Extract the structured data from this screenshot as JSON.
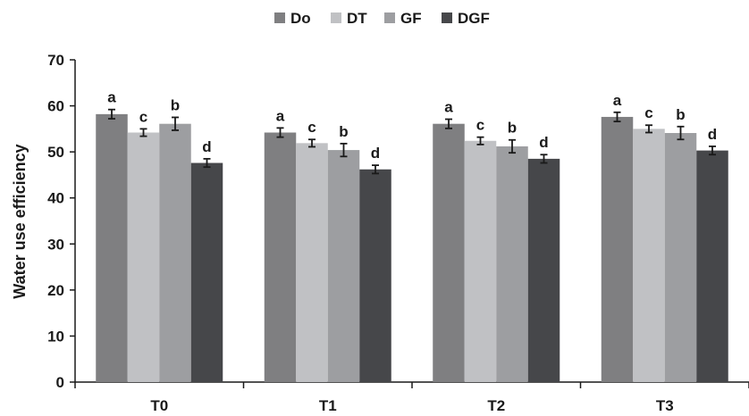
{
  "chart_data": {
    "type": "bar",
    "title": "",
    "xlabel": "",
    "ylabel": "Water use efficiency",
    "ylim": [
      0,
      70
    ],
    "yticks": [
      0,
      10,
      20,
      30,
      40,
      50,
      60,
      70
    ],
    "grid": false,
    "legend_position": "top-center",
    "categories": [
      "T0",
      "T1",
      "T2",
      "T3"
    ],
    "series": [
      {
        "name": "Do",
        "color": "#7f7f81",
        "values": [
          58.2,
          54.2,
          56.1,
          57.6
        ],
        "errors": [
          1.0,
          1.0,
          1.0,
          1.0
        ],
        "letters": [
          "a",
          "a",
          "a",
          "a"
        ]
      },
      {
        "name": "DT",
        "color": "#c0c1c4",
        "values": [
          54.2,
          51.9,
          52.4,
          55.0
        ],
        "errors": [
          0.8,
          0.8,
          0.8,
          0.8
        ],
        "letters": [
          "c",
          "c",
          "c",
          "c"
        ]
      },
      {
        "name": "GF",
        "color": "#9d9ea1",
        "values": [
          56.1,
          50.4,
          51.2,
          54.1
        ],
        "errors": [
          1.4,
          1.4,
          1.4,
          1.4
        ],
        "letters": [
          "b",
          "b",
          "b",
          "b"
        ]
      },
      {
        "name": "DGF",
        "color": "#46474a",
        "values": [
          47.6,
          46.2,
          48.5,
          50.3
        ],
        "errors": [
          0.9,
          0.9,
          0.9,
          0.9
        ],
        "letters": [
          "d",
          "d",
          "d",
          "d"
        ]
      }
    ]
  }
}
